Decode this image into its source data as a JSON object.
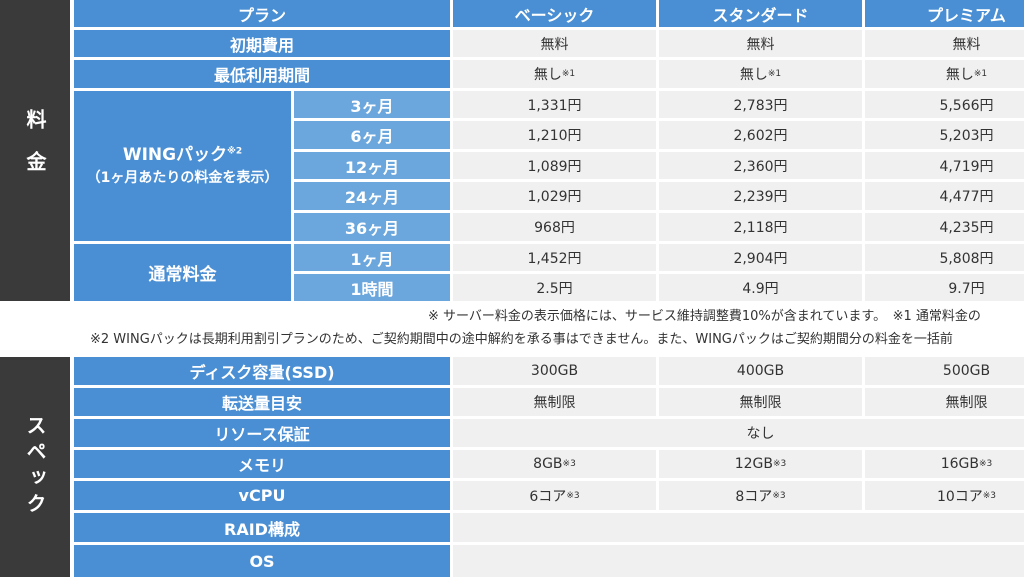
{
  "section_price_label": "料金",
  "section_spec_label": "スペック",
  "header": {
    "plan_label": "プラン",
    "plans": [
      "ベーシック",
      "スタンダード",
      "プレミアム"
    ]
  },
  "initial_fee": {
    "label": "初期費用",
    "values": [
      "無料",
      "無料",
      "無料"
    ]
  },
  "min_period": {
    "label": "最低利用期間",
    "values": [
      "無し",
      "無し",
      "無し"
    ],
    "note_mark": "※1"
  },
  "wing_pack": {
    "label": "WINGパック",
    "label_mark": "※2",
    "sublabel": "（1ヶ月あたりの料金を表示）",
    "rows": [
      {
        "term": "3ヶ月",
        "values": [
          "1,331円",
          "2,783円",
          "5,566円"
        ]
      },
      {
        "term": "6ヶ月",
        "values": [
          "1,210円",
          "2,602円",
          "5,203円"
        ]
      },
      {
        "term": "12ヶ月",
        "values": [
          "1,089円",
          "2,360円",
          "4,719円"
        ]
      },
      {
        "term": "24ヶ月",
        "values": [
          "1,029円",
          "2,239円",
          "4,477円"
        ]
      },
      {
        "term": "36ヶ月",
        "values": [
          "968円",
          "2,118円",
          "4,235円"
        ]
      }
    ]
  },
  "normal_fee": {
    "label": "通常料金",
    "rows": [
      {
        "term": "1ヶ月",
        "values": [
          "1,452円",
          "2,904円",
          "5,808円"
        ]
      },
      {
        "term": "1時間",
        "values": [
          "2.5円",
          "4.9円",
          "9.7円"
        ]
      }
    ]
  },
  "notes": {
    "line1": "※ サーバー料金の表示価格には、サービス維持調整費10%が含まれています。　※1 通常料金の",
    "line2": "※2 WINGパックは長期利用割引プランのため、ご契約期間中の途中解約を承る事はできません。また、WINGパックはご契約期間分の料金を一括前"
  },
  "spec": {
    "disk": {
      "label": "ディスク容量(SSD)",
      "values": [
        "300GB",
        "400GB",
        "500GB"
      ]
    },
    "transfer": {
      "label": "転送量目安",
      "values": [
        "無制限",
        "無制限",
        "無制限"
      ]
    },
    "resource": {
      "label": "リソース保証",
      "value": "なし"
    },
    "memory": {
      "label": "メモリ",
      "values": [
        "8GB",
        "12GB",
        "16GB"
      ],
      "note_mark": "※3"
    },
    "vcpu": {
      "label": "vCPU",
      "values": [
        "6コア",
        "8コア",
        "10コア"
      ],
      "note_mark": "※3"
    },
    "raid": {
      "label": "RAID構成"
    },
    "os": {
      "label": "OS"
    }
  }
}
